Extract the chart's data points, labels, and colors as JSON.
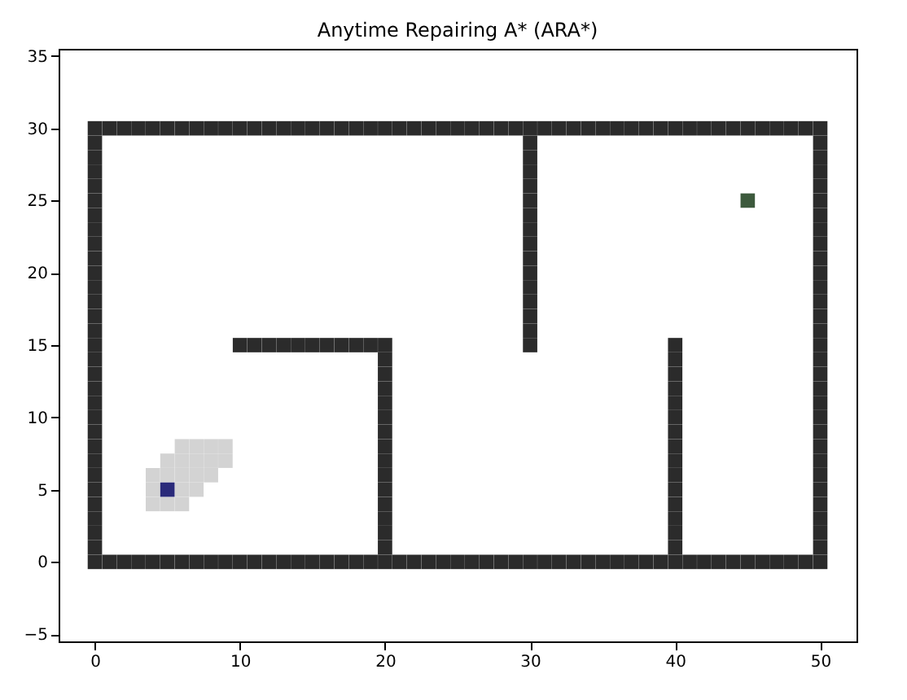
{
  "chart_data": {
    "type": "scatter",
    "title": "Anytime Repairing A* (ARA*)",
    "marker": "square",
    "grid": false,
    "xlim": [
      -2.5,
      52.5
    ],
    "xticks": [
      0,
      10,
      20,
      30,
      40,
      50
    ],
    "ylim": [
      -5.5,
      35.5
    ],
    "yticks": [
      -5,
      0,
      5,
      10,
      15,
      20,
      25,
      30,
      35
    ],
    "series": [
      {
        "color": "#d3d3d3",
        "x": [
          6,
          7,
          8,
          9,
          5,
          6,
          7,
          8,
          9,
          4,
          5,
          6,
          7,
          8,
          4,
          6,
          7,
          4,
          5,
          6
        ],
        "values": [
          8,
          8,
          8,
          8,
          7,
          7,
          7,
          7,
          7,
          6,
          6,
          6,
          6,
          6,
          5,
          5,
          5,
          4,
          4,
          4
        ]
      },
      {
        "color": "#2b2b2b",
        "x": [
          0,
          1,
          2,
          3,
          4,
          5,
          6,
          7,
          8,
          9,
          10,
          11,
          12,
          13,
          14,
          15,
          16,
          17,
          18,
          19,
          20,
          21,
          22,
          23,
          24,
          25,
          26,
          27,
          28,
          29,
          30,
          31,
          32,
          33,
          34,
          35,
          36,
          37,
          38,
          39,
          40,
          41,
          42,
          43,
          44,
          45,
          46,
          47,
          48,
          49,
          50
        ],
        "values": [
          0,
          0,
          0,
          0,
          0,
          0,
          0,
          0,
          0,
          0,
          0,
          0,
          0,
          0,
          0,
          0,
          0,
          0,
          0,
          0,
          0,
          0,
          0,
          0,
          0,
          0,
          0,
          0,
          0,
          0,
          0,
          0,
          0,
          0,
          0,
          0,
          0,
          0,
          0,
          0,
          0,
          0,
          0,
          0,
          0,
          0,
          0,
          0,
          0,
          0,
          0
        ]
      },
      {
        "color": "#2b2b2b",
        "x": [
          0,
          1,
          2,
          3,
          4,
          5,
          6,
          7,
          8,
          9,
          10,
          11,
          12,
          13,
          14,
          15,
          16,
          17,
          18,
          19,
          20,
          21,
          22,
          23,
          24,
          25,
          26,
          27,
          28,
          29,
          30,
          31,
          32,
          33,
          34,
          35,
          36,
          37,
          38,
          39,
          40,
          41,
          42,
          43,
          44,
          45,
          46,
          47,
          48,
          49,
          50
        ],
        "values": [
          30,
          30,
          30,
          30,
          30,
          30,
          30,
          30,
          30,
          30,
          30,
          30,
          30,
          30,
          30,
          30,
          30,
          30,
          30,
          30,
          30,
          30,
          30,
          30,
          30,
          30,
          30,
          30,
          30,
          30,
          30,
          30,
          30,
          30,
          30,
          30,
          30,
          30,
          30,
          30,
          30,
          30,
          30,
          30,
          30,
          30,
          30,
          30,
          30,
          30,
          30
        ]
      },
      {
        "color": "#2b2b2b",
        "x": [
          0,
          0,
          0,
          0,
          0,
          0,
          0,
          0,
          0,
          0,
          0,
          0,
          0,
          0,
          0,
          0,
          0,
          0,
          0,
          0,
          0,
          0,
          0,
          0,
          0,
          0,
          0,
          0,
          0
        ],
        "values": [
          1,
          2,
          3,
          4,
          5,
          6,
          7,
          8,
          9,
          10,
          11,
          12,
          13,
          14,
          15,
          16,
          17,
          18,
          19,
          20,
          21,
          22,
          23,
          24,
          25,
          26,
          27,
          28,
          29
        ]
      },
      {
        "color": "#2b2b2b",
        "x": [
          50,
          50,
          50,
          50,
          50,
          50,
          50,
          50,
          50,
          50,
          50,
          50,
          50,
          50,
          50,
          50,
          50,
          50,
          50,
          50,
          50,
          50,
          50,
          50,
          50,
          50,
          50,
          50,
          50
        ],
        "values": [
          1,
          2,
          3,
          4,
          5,
          6,
          7,
          8,
          9,
          10,
          11,
          12,
          13,
          14,
          15,
          16,
          17,
          18,
          19,
          20,
          21,
          22,
          23,
          24,
          25,
          26,
          27,
          28,
          29
        ]
      },
      {
        "color": "#2b2b2b",
        "x": [
          20,
          20,
          20,
          20,
          20,
          20,
          20,
          20,
          20,
          20,
          20,
          20,
          20,
          20,
          20
        ],
        "values": [
          1,
          2,
          3,
          4,
          5,
          6,
          7,
          8,
          9,
          10,
          11,
          12,
          13,
          14,
          15
        ]
      },
      {
        "color": "#2b2b2b",
        "x": [
          10,
          11,
          12,
          13,
          14,
          15,
          16,
          17,
          18,
          19
        ],
        "values": [
          15,
          15,
          15,
          15,
          15,
          15,
          15,
          15,
          15,
          15
        ]
      },
      {
        "color": "#2b2b2b",
        "x": [
          30,
          30,
          30,
          30,
          30,
          30,
          30,
          30,
          30,
          30,
          30,
          30,
          30,
          30,
          30
        ],
        "values": [
          15,
          16,
          17,
          18,
          19,
          20,
          21,
          22,
          23,
          24,
          25,
          26,
          27,
          28,
          29
        ]
      },
      {
        "color": "#2b2b2b",
        "x": [
          40,
          40,
          40,
          40,
          40,
          40,
          40,
          40,
          40,
          40,
          40,
          40,
          40,
          40,
          40
        ],
        "values": [
          1,
          2,
          3,
          4,
          5,
          6,
          7,
          8,
          9,
          10,
          11,
          12,
          13,
          14,
          15
        ]
      },
      {
        "color": "#2a2a7a",
        "x": [
          5
        ],
        "values": [
          5
        ]
      },
      {
        "color": "#3d5a3d",
        "x": [
          45
        ],
        "values": [
          25
        ]
      }
    ]
  }
}
